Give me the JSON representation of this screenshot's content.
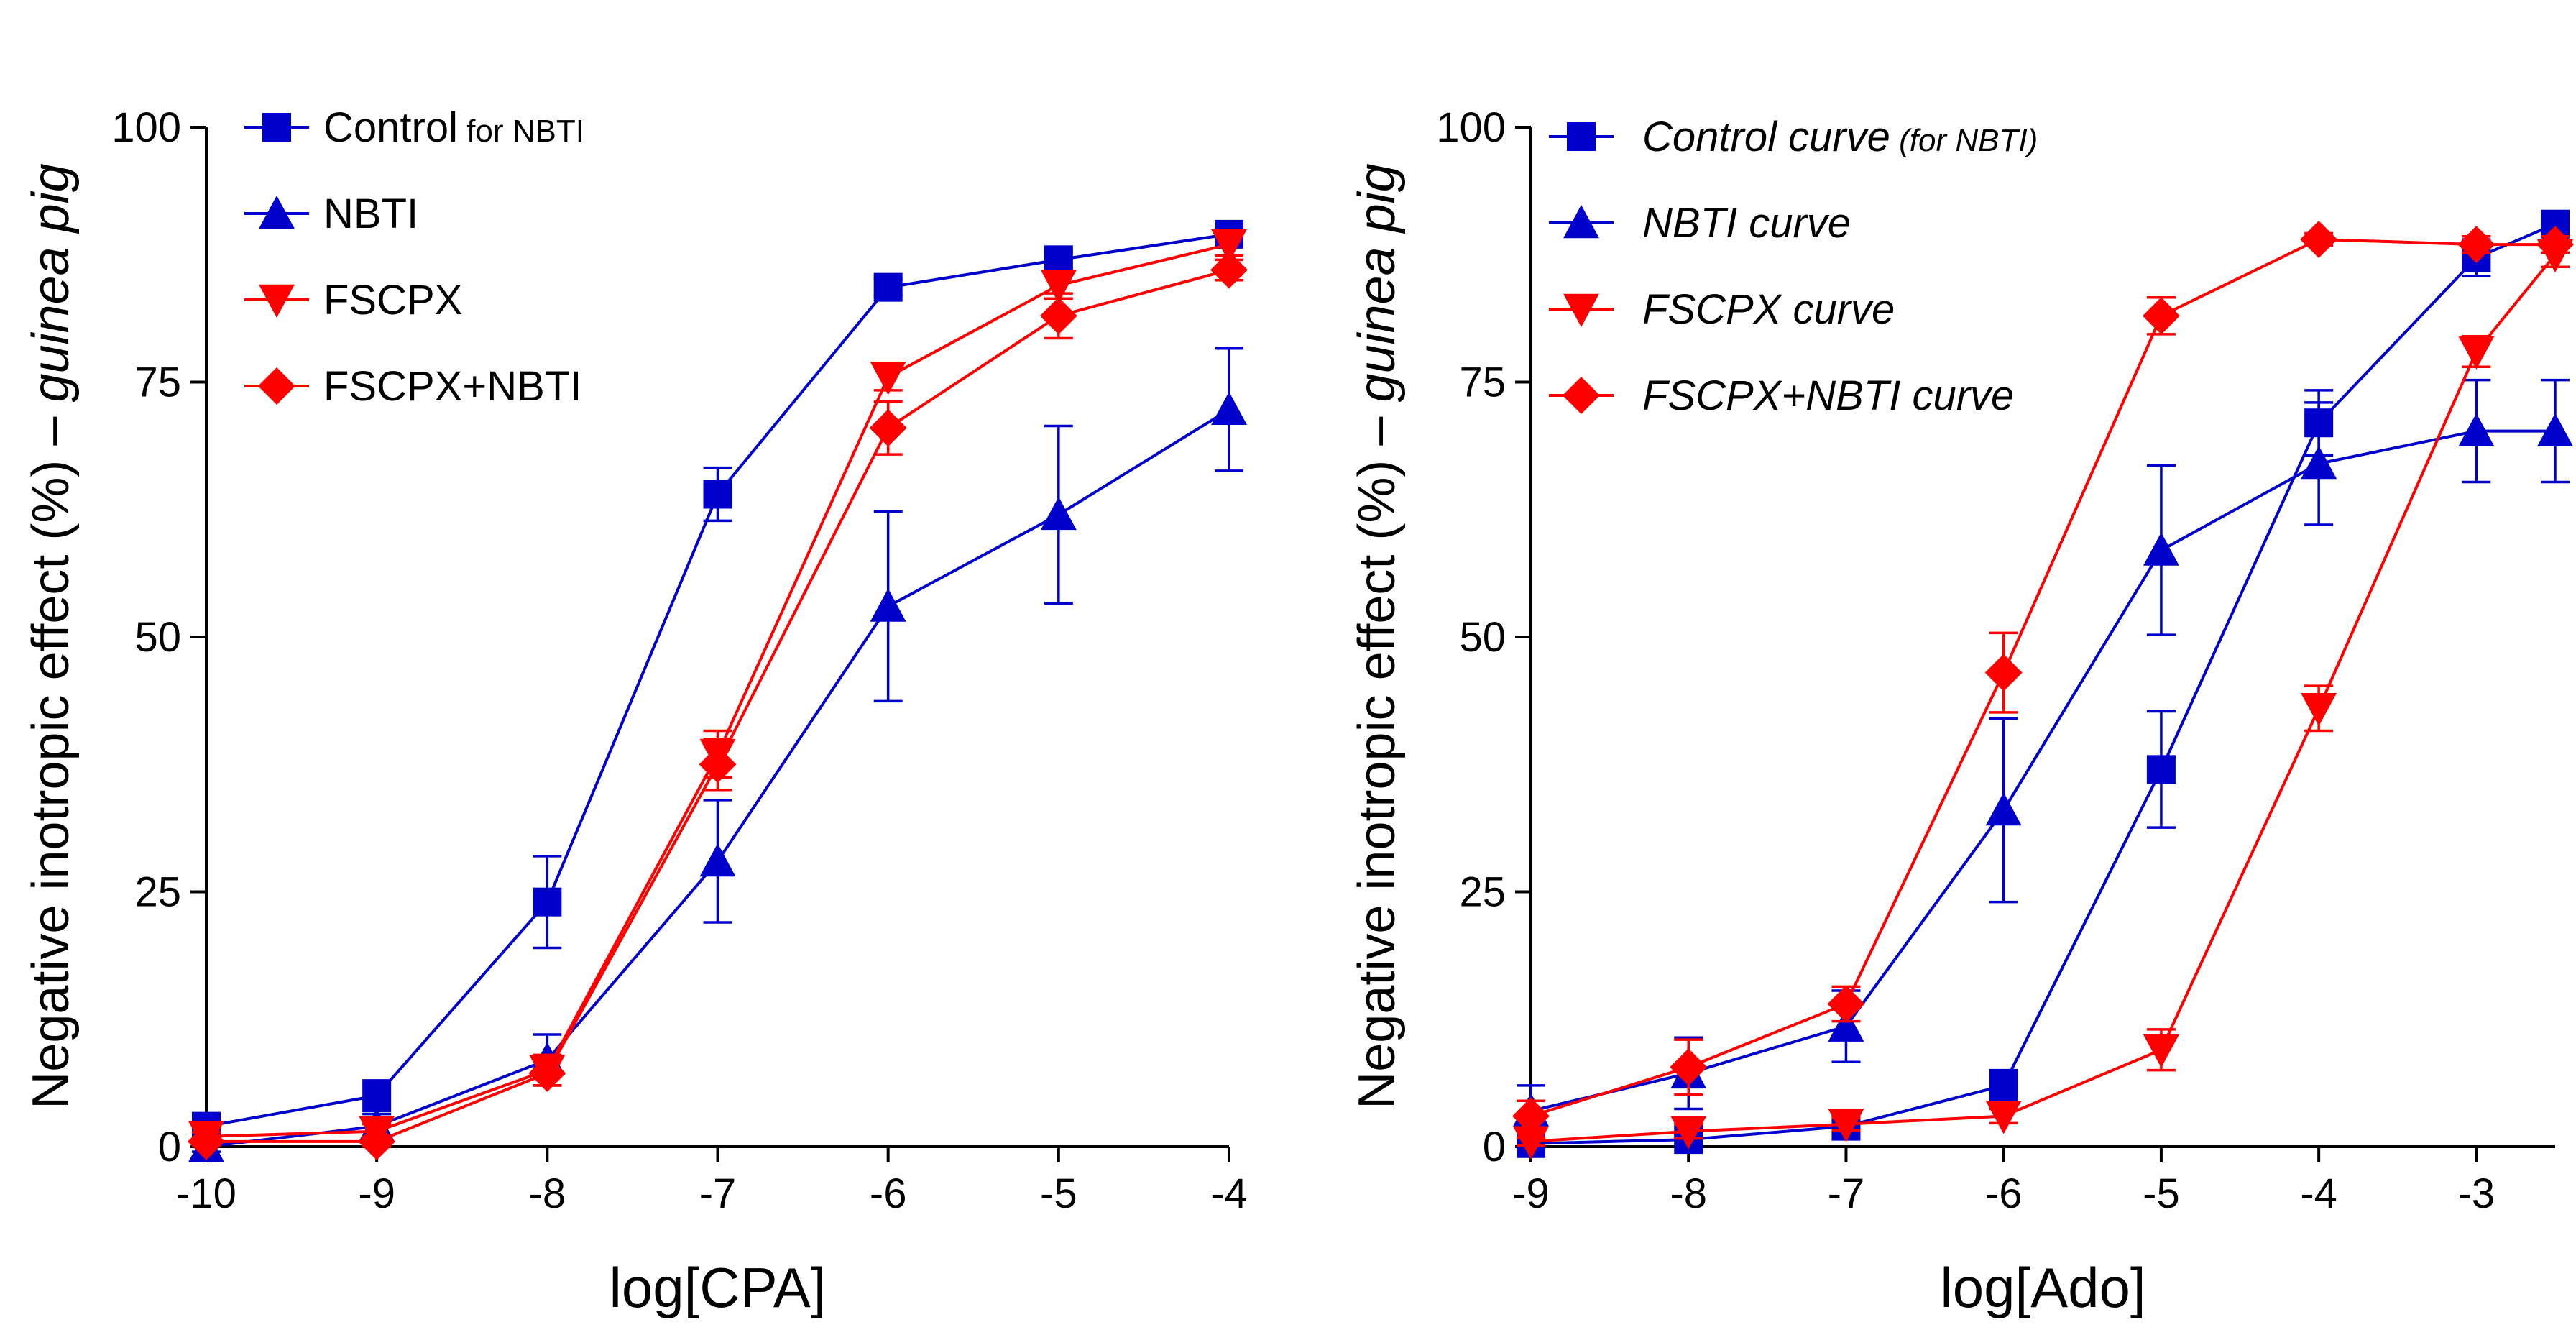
{
  "chart_data": [
    {
      "type": "line",
      "title": "",
      "xlabel": "log[CPA]",
      "ylabel": "Negative inotropic effect (%)",
      "ylabel_suffix": "guinea pig",
      "ylabel_dash": "–",
      "xlim": [
        -10,
        -4
      ],
      "ylim": [
        0,
        100
      ],
      "xticks": [
        -10,
        -9,
        -8,
        -7,
        -6,
        -5,
        -4
      ],
      "yticks": [
        0,
        25,
        50,
        75,
        100
      ],
      "legend_position": "top-left",
      "series": [
        {
          "name": "Control",
          "name_note": "for NBTI",
          "italic": false,
          "color": "#0000CC",
          "marker": "square",
          "x": [
            -10,
            -9,
            -8,
            -7,
            -6,
            -5,
            -4
          ],
          "y": [
            2,
            5,
            24,
            64,
            84.3,
            87,
            89.5
          ],
          "err": [
            0.5,
            1.5,
            4.5,
            2.6,
            0.8,
            0.8,
            1.1
          ]
        },
        {
          "name": "NBTI",
          "name_note": "",
          "italic": false,
          "color": "#0000CC",
          "marker": "triangle-up",
          "x": [
            -10,
            -9,
            -8,
            -7,
            -6,
            -5,
            -4
          ],
          "y": [
            0,
            2,
            8.5,
            28,
            53,
            62,
            72.3
          ],
          "err": [
            0.5,
            1.2,
            2.5,
            6.0,
            9.3,
            8.7,
            6.0
          ]
        },
        {
          "name": "FSCPX",
          "name_note": "",
          "italic": false,
          "color": "#FF0000",
          "marker": "triangle-down",
          "x": [
            -10,
            -9,
            -8,
            -7,
            -6,
            -5,
            -4
          ],
          "y": [
            1,
            1.5,
            7.5,
            38.5,
            75.5,
            84.5,
            88.5
          ],
          "err": [
            0.4,
            0.7,
            1.5,
            2.3,
            1.3,
            1.3,
            1.1
          ]
        },
        {
          "name": "FSCPX+NBTI",
          "name_note": "",
          "italic": false,
          "color": "#FF0000",
          "marker": "diamond",
          "x": [
            -10,
            -9,
            -8,
            -7,
            -6,
            -5,
            -4
          ],
          "y": [
            0.5,
            0.5,
            7.2,
            37.5,
            70.5,
            81.5,
            86
          ],
          "err": [
            0.4,
            0.5,
            1.2,
            2.5,
            2.6,
            2.2,
            1.0
          ]
        }
      ]
    },
    {
      "type": "line",
      "title": "",
      "xlabel": "log[Ado]",
      "ylabel": "Negative inotropic effect (%)",
      "ylabel_suffix": "guinea pig",
      "ylabel_dash": "–",
      "xlim": [
        -9,
        -2.5
      ],
      "ylim": [
        0,
        100
      ],
      "xticks": [
        -9,
        -8,
        -7,
        -6,
        -5,
        -4,
        -3
      ],
      "yticks": [
        0,
        25,
        50,
        75,
        100
      ],
      "legend_position": "top-left",
      "series": [
        {
          "name": "Control curve",
          "name_note": "(for NBTI)",
          "italic": true,
          "color": "#0000CC",
          "marker": "square",
          "x": [
            -9,
            -8,
            -7,
            -6,
            -5,
            -4,
            -3,
            -2.5
          ],
          "y": [
            0.3,
            0.7,
            2,
            6,
            37,
            71,
            87.2,
            90.5
          ],
          "err": [
            0.3,
            0.5,
            0.6,
            1.5,
            5.7,
            3.2,
            1.8,
            0.8
          ]
        },
        {
          "name": "NBTI curve",
          "name_note": "",
          "italic": false,
          "color": "#0000CC",
          "marker": "triangle-up",
          "x": [
            -9,
            -8,
            -7,
            -6,
            -5,
            -4,
            -3,
            -2.5
          ],
          "y": [
            3.5,
            7.2,
            11.8,
            33,
            58.5,
            67,
            70.2,
            70.2
          ],
          "err": [
            2.5,
            3.5,
            3.5,
            9.0,
            8.3,
            6.0,
            5.0,
            5.0
          ]
        },
        {
          "name": "FSCPX curve",
          "name_note": "",
          "italic": false,
          "color": "#FF0000",
          "marker": "triangle-down",
          "x": [
            -9,
            -8,
            -7,
            -6,
            -5,
            -4,
            -3,
            -2.5
          ],
          "y": [
            0.5,
            1.5,
            2.2,
            3,
            9.5,
            43,
            78,
            87.5
          ],
          "err": [
            0.4,
            0.7,
            0.6,
            0.7,
            2.0,
            2.2,
            1.5,
            1.2
          ]
        },
        {
          "name": "FSCPX+NBTI curve",
          "name_note": "",
          "italic": false,
          "color": "#FF0000",
          "marker": "diamond",
          "x": [
            -9,
            -8,
            -7,
            -6,
            -5,
            -4,
            -3,
            -2.5
          ],
          "y": [
            3,
            7.8,
            14,
            46.5,
            81.5,
            89,
            88.5,
            88.5
          ],
          "err": [
            1.5,
            2.7,
            1.7,
            3.9,
            1.8,
            0.6,
            0.8,
            0.8
          ]
        }
      ]
    }
  ]
}
